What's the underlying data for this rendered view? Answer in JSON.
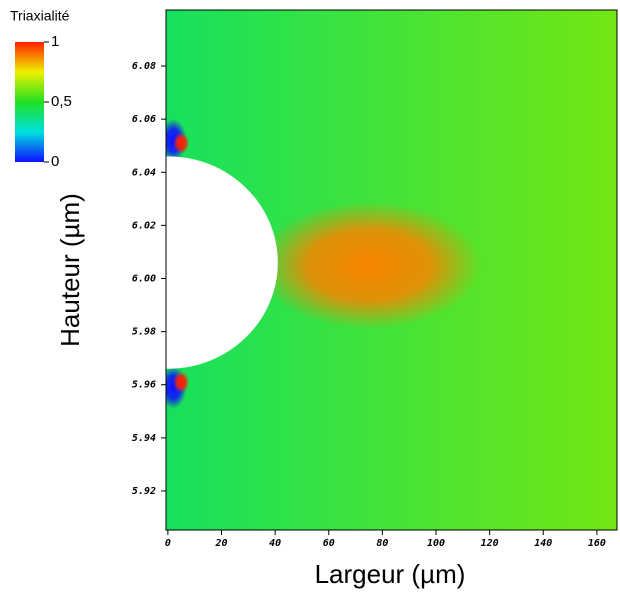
{
  "chart_data": {
    "type": "heatmap",
    "colorbar": {
      "title": "Triaxialité",
      "lim": [
        0,
        1
      ],
      "ticks": [
        0,
        {
          "value": 0.5,
          "label": "0,5"
        },
        1
      ],
      "colors": [
        "#1010ff",
        "#00e0e0",
        "#20e020",
        "#f0f000",
        "#ff2000"
      ]
    },
    "xlabel": "Largeur (µm)",
    "ylabel": "Hauteur (µm)",
    "xlim": [
      -0.7,
      167.5
    ],
    "ylim": [
      5.9053,
      6.1011
    ],
    "xticks": [
      0,
      20,
      40,
      60,
      80,
      100,
      120,
      140,
      160
    ],
    "yticks": [
      5.92,
      5.94,
      5.96,
      5.98,
      {
        "value": 6,
        "label": "6.00"
      },
      6.02,
      6.04,
      6.06,
      6.08
    ],
    "field": {
      "base_left": 0.42,
      "base_right": 0.6,
      "peaks": [
        {
          "x": 75,
          "y": 6.005,
          "value": 0.88,
          "rx": 42,
          "ry": 0.024
        },
        {
          "x": 2,
          "y": 6.052,
          "value": 0,
          "rx": 5,
          "ry": 0.008
        },
        {
          "x": 2,
          "y": 5.959,
          "value": 0,
          "rx": 5,
          "ry": 0.008
        },
        {
          "x": 5,
          "y": 6.051,
          "value": 1,
          "rx": 3,
          "ry": 0.004
        },
        {
          "x": 5,
          "y": 5.961,
          "value": 1,
          "rx": 3,
          "ry": 0.004
        }
      ],
      "hole": {
        "x": 0,
        "y": 6.006,
        "rx": 41,
        "ry": 0.04
      }
    }
  }
}
